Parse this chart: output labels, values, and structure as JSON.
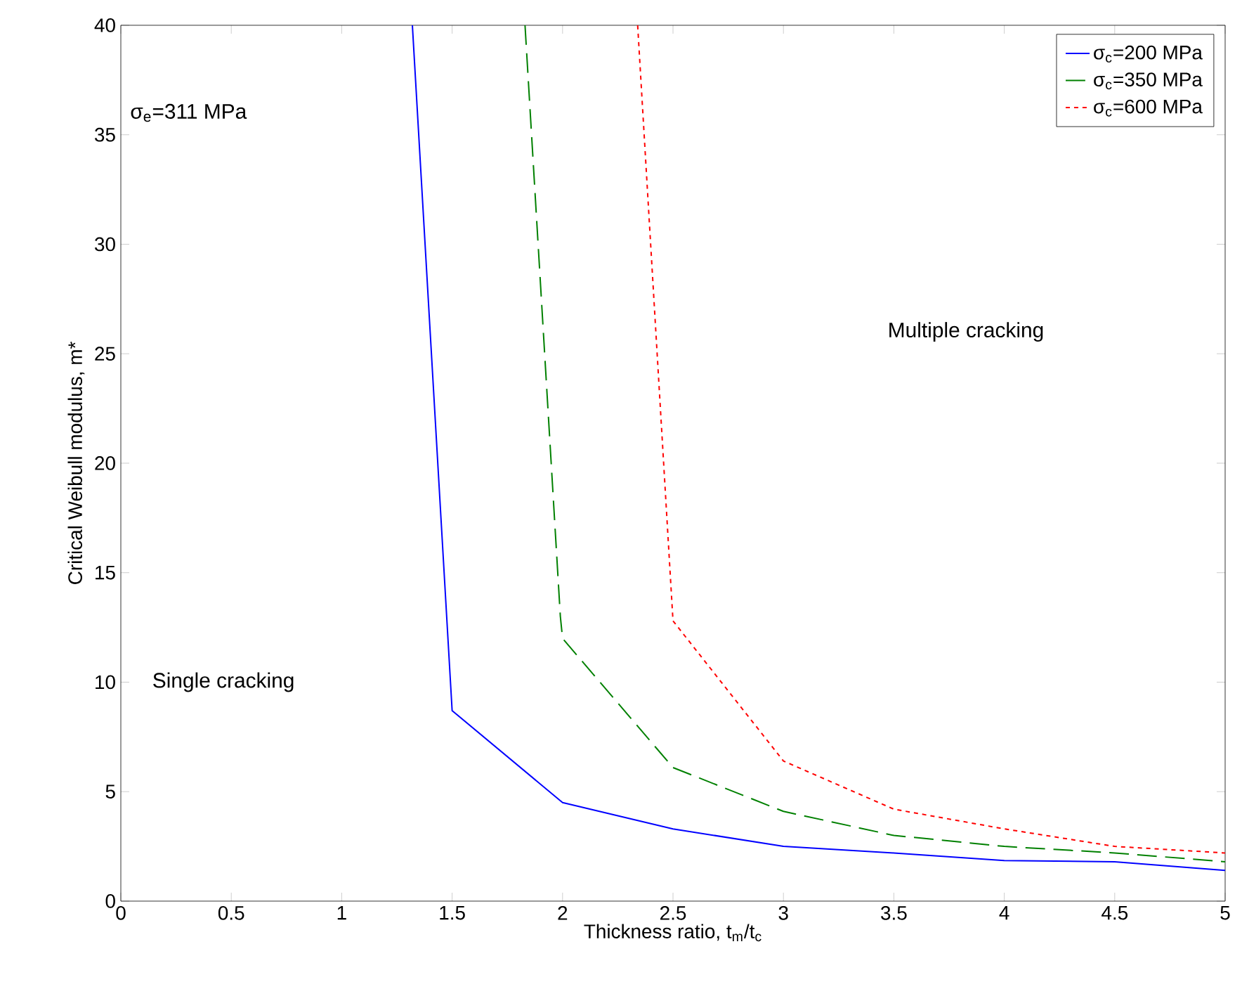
{
  "chart_data": {
    "type": "line",
    "xlabel": "Thickness ratio, t$_{m}$/t$_{c}$",
    "ylabel": "Critical Weibull modulus, m*",
    "xlim": [
      0,
      5
    ],
    "ylim": [
      0,
      40
    ],
    "xticks": [
      0,
      0.5,
      1,
      1.5,
      2,
      2.5,
      3,
      3.5,
      4,
      4.5,
      5
    ],
    "yticks": [
      0,
      5,
      10,
      15,
      20,
      25,
      30,
      35,
      40
    ],
    "grid": false,
    "legend": "top right",
    "annotations": [
      "σ$_{e}$=311 MPa",
      "Multiple cracking",
      "Single cracking"
    ],
    "series": [
      {
        "name": "σ$_{c}$=200 MPa",
        "color": "#0000ff",
        "line_style": "solid",
        "x": [
          1.32,
          1.5,
          2,
          2.5,
          3,
          3.5,
          4,
          4.5,
          5
        ],
        "values": [
          40,
          8.7,
          4.5,
          3.3,
          2.5,
          2.2,
          1.85,
          1.8,
          1.4
        ]
      },
      {
        "name": "σ$_{c}$=350 MPa",
        "color": "#008000",
        "line_style": "dashed",
        "x": [
          1.83,
          1.99,
          2,
          2.5,
          3,
          3.5,
          4,
          4.5,
          5
        ],
        "values": [
          40,
          13,
          12,
          6.1,
          4.1,
          3.0,
          2.5,
          2.2,
          1.8
        ]
      },
      {
        "name": "σ$_{c}$=600 MPa",
        "color": "#ff0000",
        "line_style": "dotted",
        "x": [
          2.34,
          2.5,
          3,
          3.5,
          4,
          4.5,
          5
        ],
        "values": [
          40,
          12.8,
          6.4,
          4.2,
          3.3,
          2.5,
          2.2
        ]
      }
    ]
  }
}
